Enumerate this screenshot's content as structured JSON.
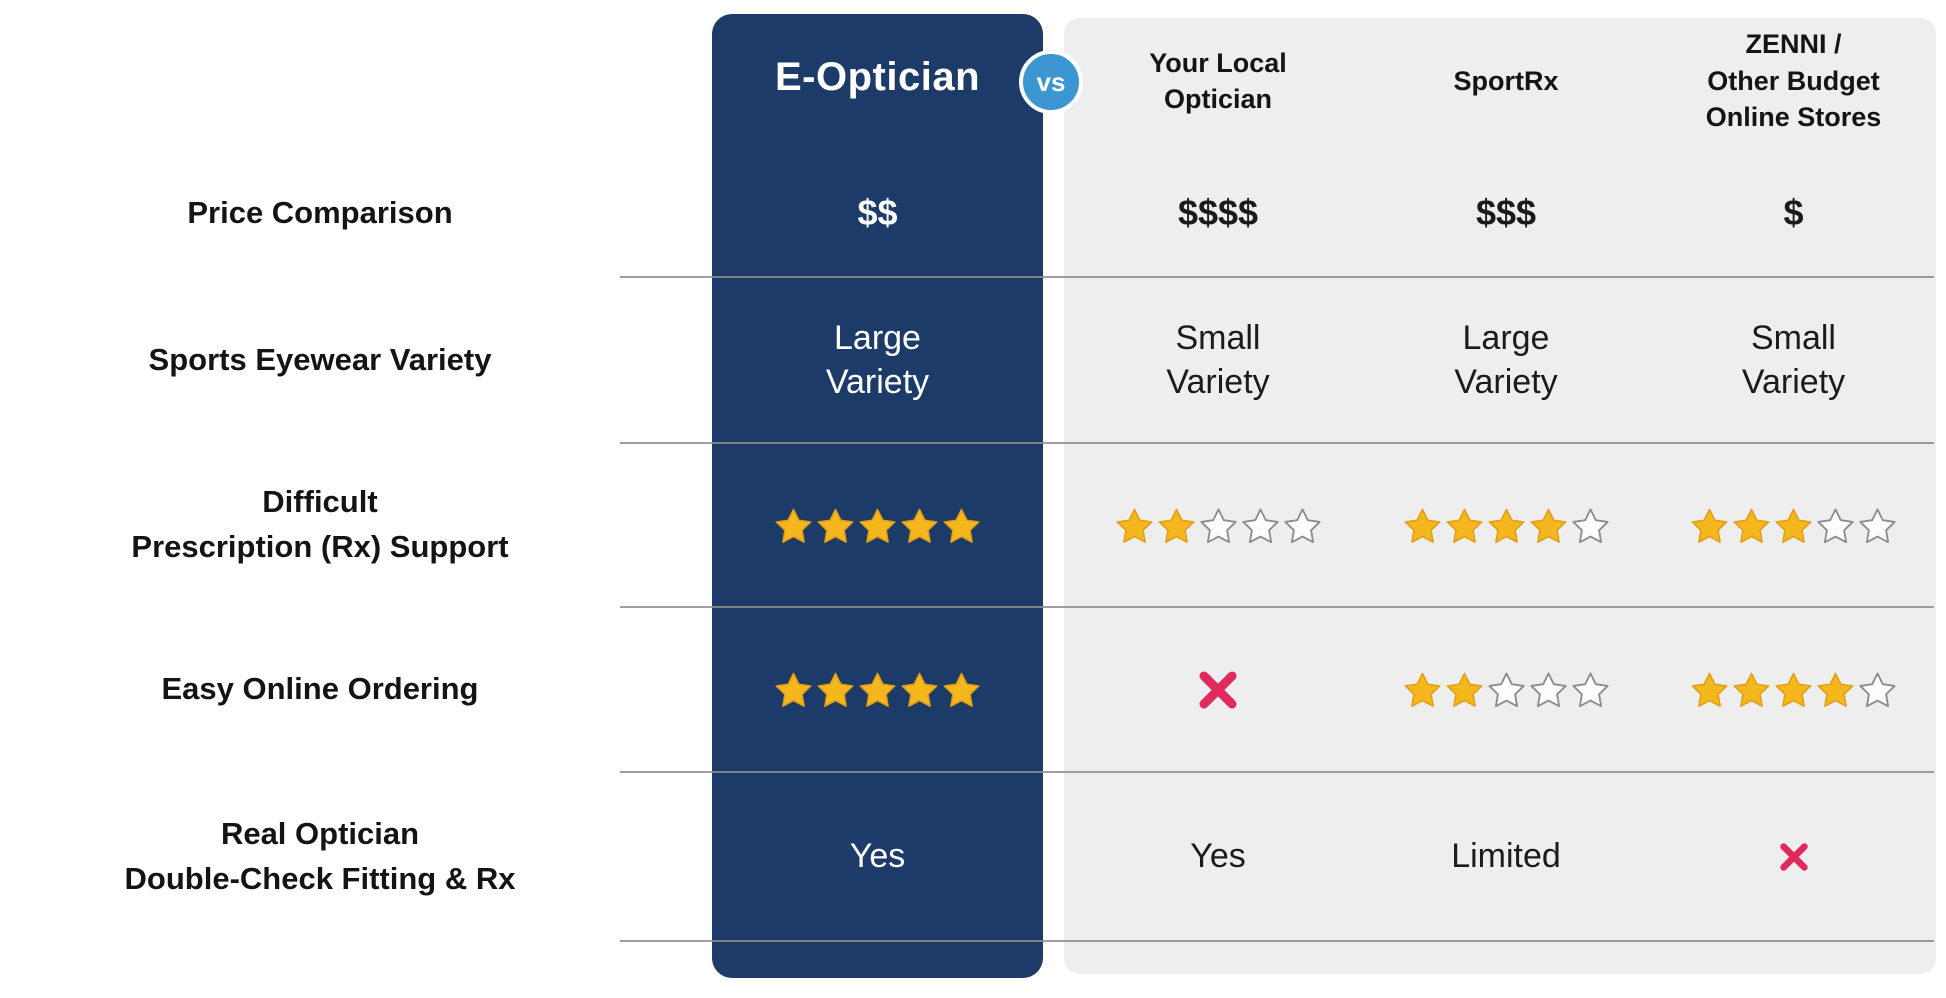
{
  "colors": {
    "navy": "#1D3B69",
    "panel_gray": "#EEEEEE",
    "vs_blue": "#3B96D2",
    "star_gold": "#F4B71E",
    "star_gold_dark": "#E19E15",
    "star_outline": "#8C8C8C",
    "cross_pink": "#E02A5C",
    "divider_gray": "#8E8E8E"
  },
  "table": {
    "vs_label": "vs",
    "columns": [
      {
        "id": "eoptician",
        "label": "E-Optician",
        "highlight": true
      },
      {
        "id": "local",
        "label": "Your Local\nOptician",
        "highlight": false
      },
      {
        "id": "sportrx",
        "label": "SportRx",
        "highlight": false
      },
      {
        "id": "zenni",
        "label": "ZENNI /\nOther Budget\nOnline Stores",
        "highlight": false
      }
    ],
    "rows": [
      {
        "id": "price",
        "label": "Price Comparison",
        "cells": [
          {
            "type": "money",
            "value": "$$"
          },
          {
            "type": "money",
            "value": "$$$$"
          },
          {
            "type": "money",
            "value": "$$$"
          },
          {
            "type": "money",
            "value": "$"
          }
        ]
      },
      {
        "id": "variety",
        "label": "Sports Eyewear Variety",
        "cells": [
          {
            "type": "text",
            "value": "Large\nVariety"
          },
          {
            "type": "text",
            "value": "Small\nVariety"
          },
          {
            "type": "text",
            "value": "Large\nVariety"
          },
          {
            "type": "text",
            "value": "Small\nVariety"
          }
        ]
      },
      {
        "id": "rx-support",
        "label": "Difficult\nPrescription (Rx) Support",
        "cells": [
          {
            "type": "stars",
            "value": 5,
            "max": 5
          },
          {
            "type": "stars",
            "value": 2,
            "max": 5
          },
          {
            "type": "stars",
            "value": 4,
            "max": 5
          },
          {
            "type": "stars",
            "value": 3,
            "max": 5
          }
        ]
      },
      {
        "id": "online-ordering",
        "label": "Easy Online Ordering",
        "cells": [
          {
            "type": "stars",
            "value": 5,
            "max": 5
          },
          {
            "type": "cross",
            "size": "large"
          },
          {
            "type": "stars",
            "value": 2,
            "max": 5
          },
          {
            "type": "stars",
            "value": 4,
            "max": 5
          }
        ]
      },
      {
        "id": "optician-check",
        "label": "Real Optician\nDouble-Check Fitting & Rx",
        "cells": [
          {
            "type": "text",
            "value": "Yes"
          },
          {
            "type": "text",
            "value": "Yes"
          },
          {
            "type": "text",
            "value": "Limited"
          },
          {
            "type": "cross",
            "size": "small"
          }
        ]
      }
    ]
  },
  "chart_data": {
    "type": "table",
    "title": "E-Optician vs competitors comparison",
    "columns": [
      "E-Optician",
      "Your Local Optician",
      "SportRx",
      "ZENNI / Other Budget Online Stores"
    ],
    "rows": [
      {
        "criterion": "Price Comparison",
        "values": [
          "$$",
          "$$$$",
          "$$$",
          "$"
        ]
      },
      {
        "criterion": "Sports Eyewear Variety",
        "values": [
          "Large Variety",
          "Small Variety",
          "Large Variety",
          "Small Variety"
        ]
      },
      {
        "criterion": "Difficult Prescription (Rx) Support",
        "values_stars_of_5": [
          5,
          2,
          4,
          3
        ]
      },
      {
        "criterion": "Easy Online Ordering",
        "values_stars_of_5": [
          5,
          null,
          2,
          4
        ],
        "notes": [
          "",
          "no (cross)",
          "",
          ""
        ]
      },
      {
        "criterion": "Real Optician Double-Check Fitting & Rx",
        "values": [
          "Yes",
          "Yes",
          "Limited",
          "No (cross)"
        ]
      }
    ]
  }
}
